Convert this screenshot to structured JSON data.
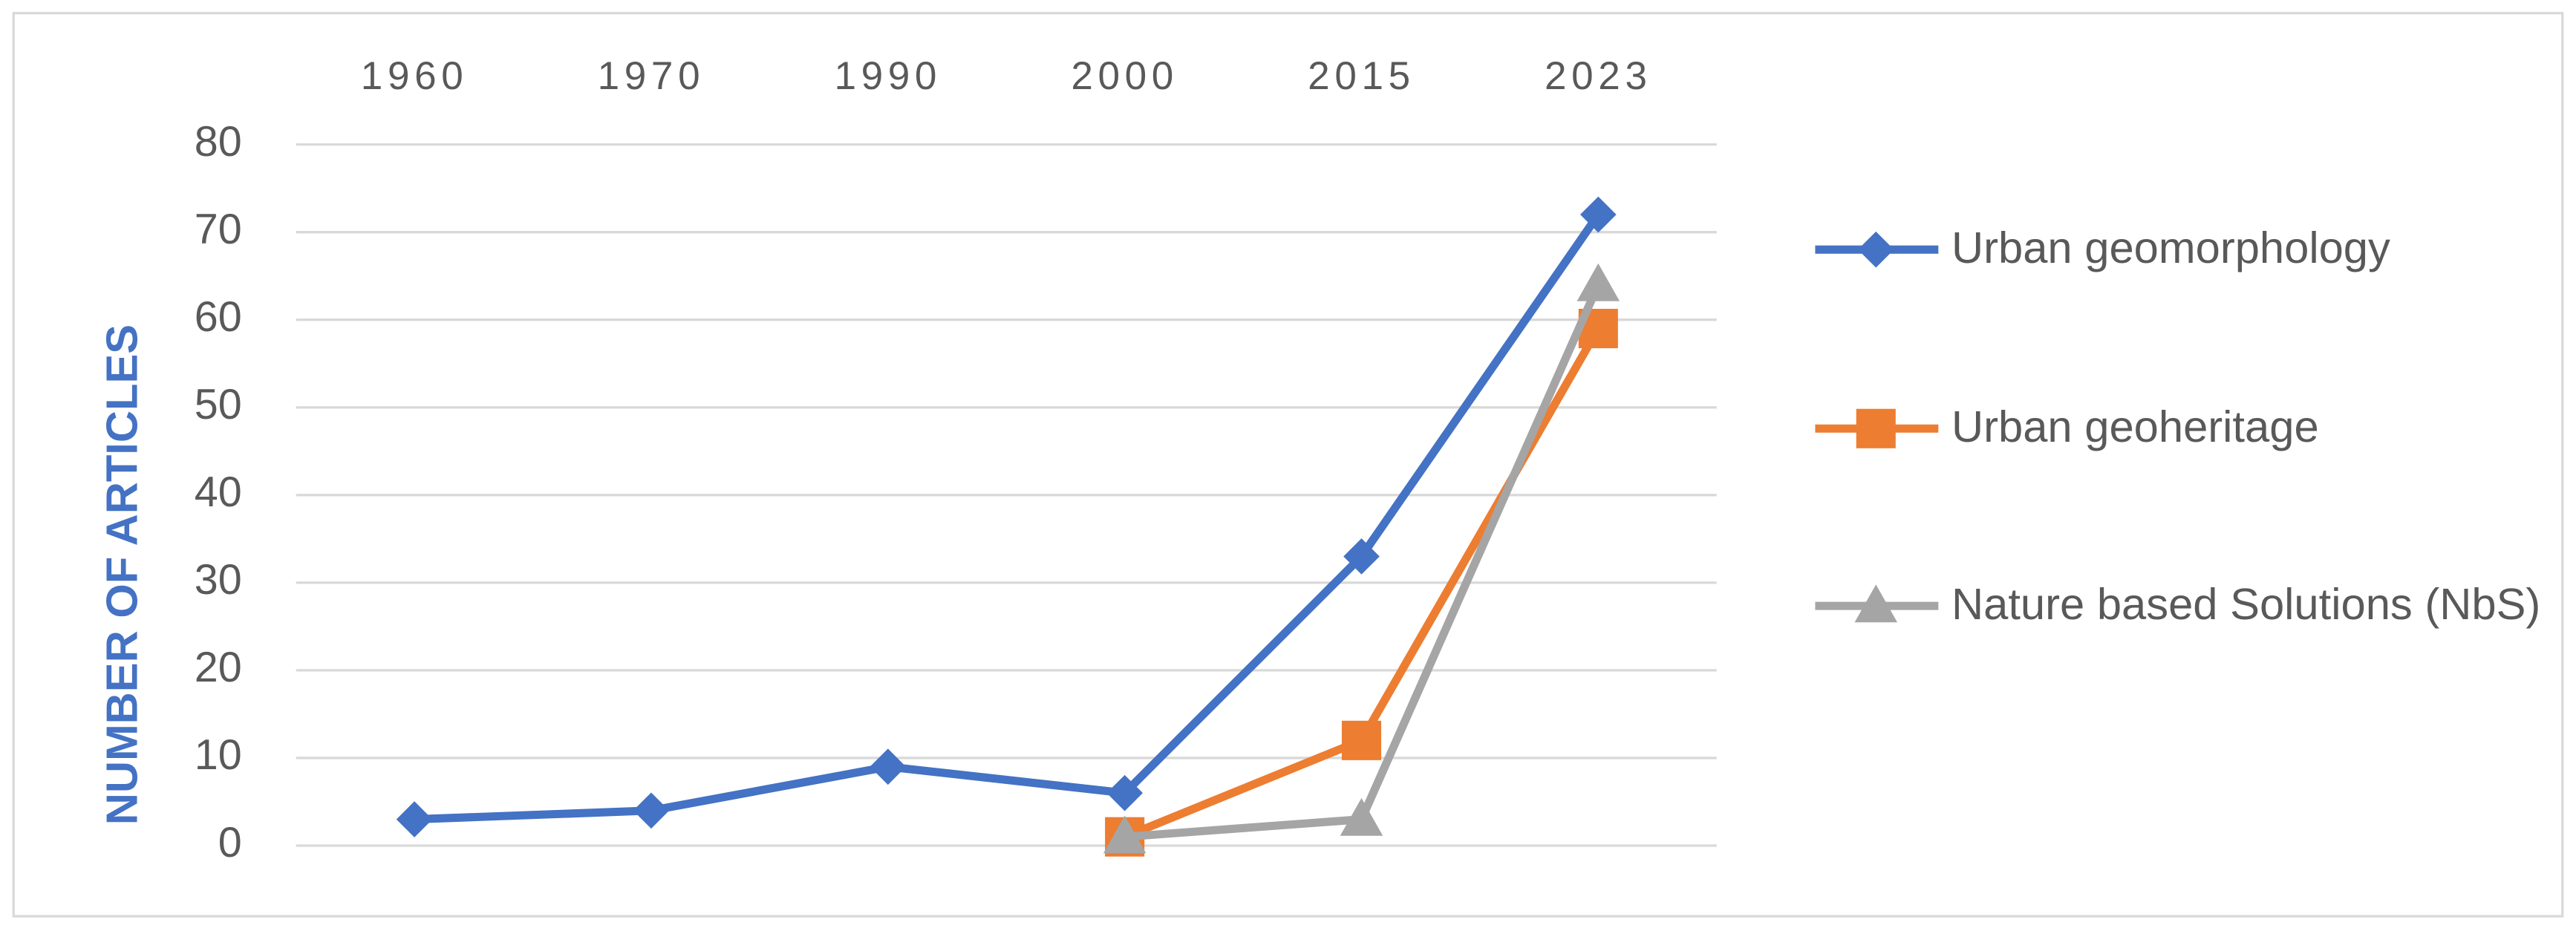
{
  "chart_data": {
    "type": "line",
    "y_label": "NUMBER OF ARTICLES",
    "categories": [
      "1960",
      "1970",
      "1990",
      "2000",
      "2015",
      "2023"
    ],
    "series": [
      {
        "name": "Urban geomorphology",
        "color": "#4472c4",
        "marker": "diamond",
        "values": [
          3,
          4,
          9,
          6,
          33,
          72
        ]
      },
      {
        "name": "Urban geoheritage",
        "color": "#ed7d31",
        "marker": "square",
        "values": [
          null,
          null,
          null,
          1,
          12,
          59
        ]
      },
      {
        "name": "Nature based Solutions (NbS)",
        "color": "#a5a5a5",
        "marker": "triangle",
        "values": [
          null,
          null,
          null,
          1,
          3,
          64
        ]
      }
    ],
    "ylim": [
      0,
      80
    ],
    "yticks": [
      0,
      10,
      20,
      30,
      40,
      50,
      60,
      70,
      80
    ],
    "grid": true,
    "legend": "right"
  }
}
